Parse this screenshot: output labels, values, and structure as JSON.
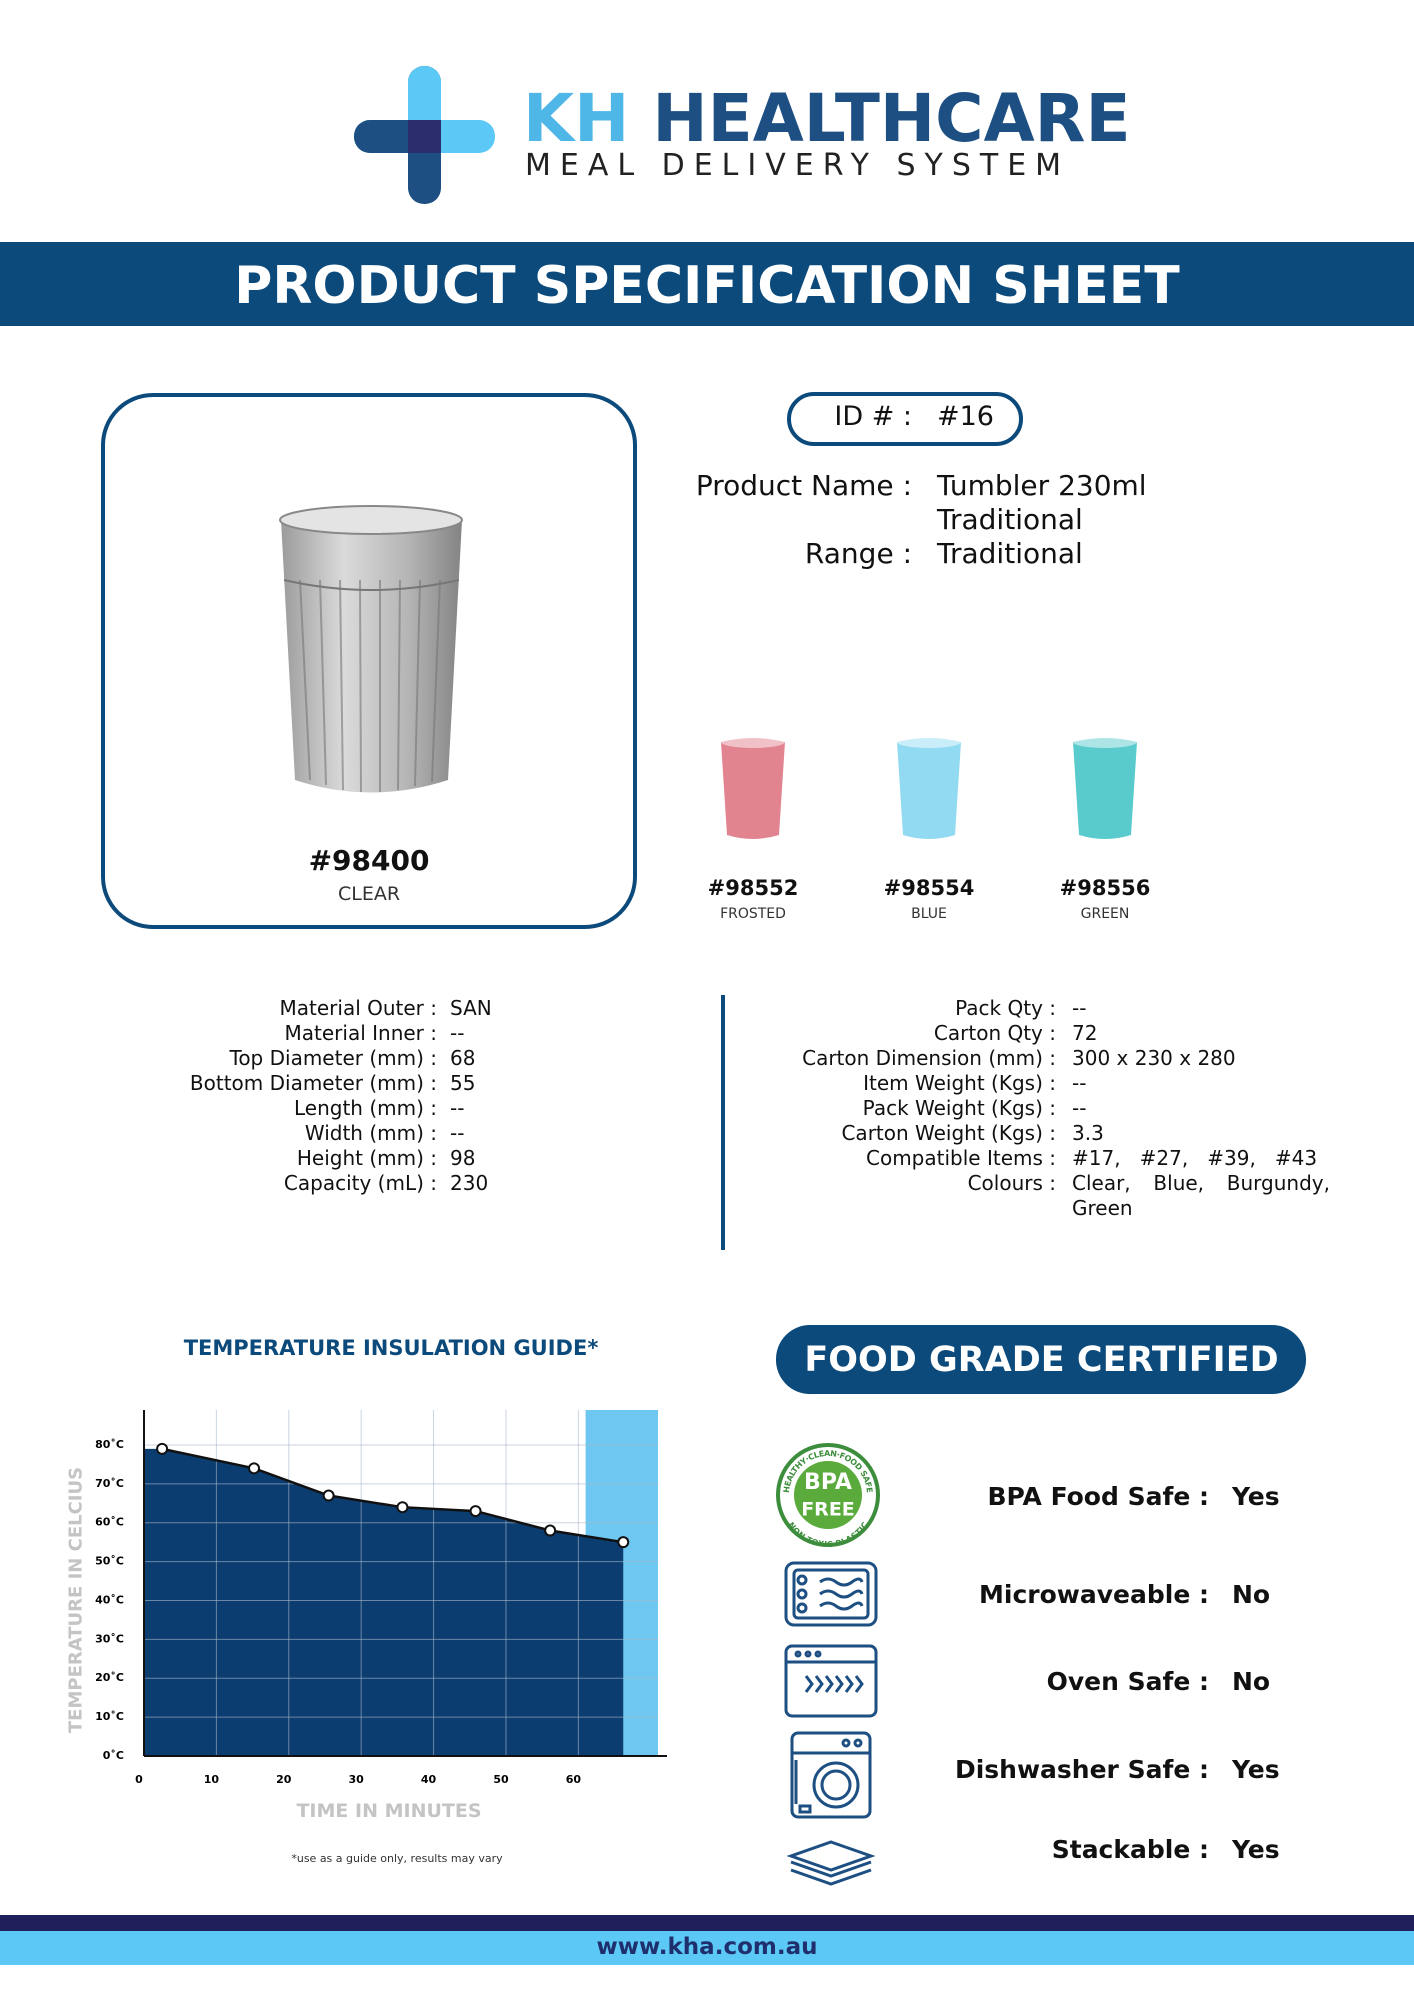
{
  "header": {
    "brand_a": "KH",
    "brand_b": "HEALTHCARE",
    "tagline": "MEAL DELIVERY SYSTEM"
  },
  "banner": {
    "title": "PRODUCT SPECIFICATION SHEET"
  },
  "product": {
    "id_label": "ID # :",
    "id": "#16",
    "name_label": "Product Name :",
    "name": "Tumbler 230ml Traditional",
    "range_label": "Range :",
    "range": "Traditional",
    "main": {
      "code": "#98400",
      "colour": "CLEAR"
    },
    "variants": [
      {
        "code": "#98552",
        "colour": "FROSTED",
        "color": "#dc6f7c"
      },
      {
        "code": "#98554",
        "colour": "BLUE",
        "color": "#7fd4f0"
      },
      {
        "code": "#98556",
        "colour": "GREEN",
        "color": "#3dc2c3"
      }
    ]
  },
  "specs_left": [
    [
      "Material Outer :",
      "SAN"
    ],
    [
      "Material Inner :",
      "--"
    ],
    [
      "Top Diameter (mm) :",
      "68"
    ],
    [
      "Bottom Diameter (mm) :",
      "55"
    ],
    [
      "Length (mm) :",
      "--"
    ],
    [
      "Width (mm) :",
      "--"
    ],
    [
      "Height (mm) :",
      "98"
    ],
    [
      "Capacity (mL) :",
      "230"
    ]
  ],
  "specs_right": [
    [
      "Pack Qty :",
      "--"
    ],
    [
      "Carton Qty :",
      "72"
    ],
    [
      "Carton Dimension (mm) :",
      "300 x 230 x 280"
    ],
    [
      "Item Weight (Kgs) :",
      "--"
    ],
    [
      "Pack Weight (Kgs) :",
      "--"
    ],
    [
      "Carton Weight (Kgs) :",
      "3.3"
    ],
    [
      "Compatible Items :",
      "#17,   #27,   #39,   #43"
    ],
    [
      "Colours :",
      "Clear, Blue, Burgundy, Green"
    ]
  ],
  "chart_data": {
    "type": "area",
    "title": "TEMPERATURE INSULATION GUIDE*",
    "xlabel": "TIME IN MINUTES",
    "ylabel": "TEMPERATURE IN CELCIUS",
    "note": "*use as a guide only, results may vary",
    "x": [
      2.5,
      15.2,
      25.5,
      35.7,
      45.8,
      56.1,
      66.2
    ],
    "values": [
      79,
      74,
      67,
      64,
      63,
      58,
      55
    ],
    "color": "#0c3d70",
    "xlim": [
      0,
      71
    ],
    "ylim": [
      0,
      89
    ],
    "xticks": [
      0,
      10,
      20,
      30,
      40,
      50,
      60
    ],
    "yticks": [
      {
        "value": 0,
        "label": "0˚C"
      },
      {
        "value": 10,
        "label": "10˚C"
      },
      {
        "value": 20,
        "label": "20˚C"
      },
      {
        "value": 30,
        "label": "30˚C"
      },
      {
        "value": 40,
        "label": "40˚C"
      },
      {
        "value": 50,
        "label": "50˚C"
      },
      {
        "value": 60,
        "label": "60˚C"
      },
      {
        "value": 70,
        "label": "70˚C"
      },
      {
        "value": 80,
        "label": "80˚C"
      }
    ],
    "grid": true,
    "shaded_x": [
      61,
      71
    ],
    "shaded_color": "#6ec7f0"
  },
  "certification": {
    "title": "FOOD GRADE CERTIFIED",
    "badge": {
      "ring_top": "HEALTHY·CLEAN·FOOD SAFE",
      "ring_bottom": "NON TOXIC PLASTIC",
      "line1": "BPA",
      "line2": "FREE"
    },
    "items": [
      [
        "BPA Food Safe :",
        "Yes"
      ],
      [
        "Microwaveable :",
        "No"
      ],
      [
        "Oven Safe :",
        "No"
      ],
      [
        "Dishwasher Safe :",
        "Yes"
      ],
      [
        "Stackable :",
        "Yes"
      ]
    ]
  },
  "footer": {
    "url": "www.kha.com.au"
  }
}
